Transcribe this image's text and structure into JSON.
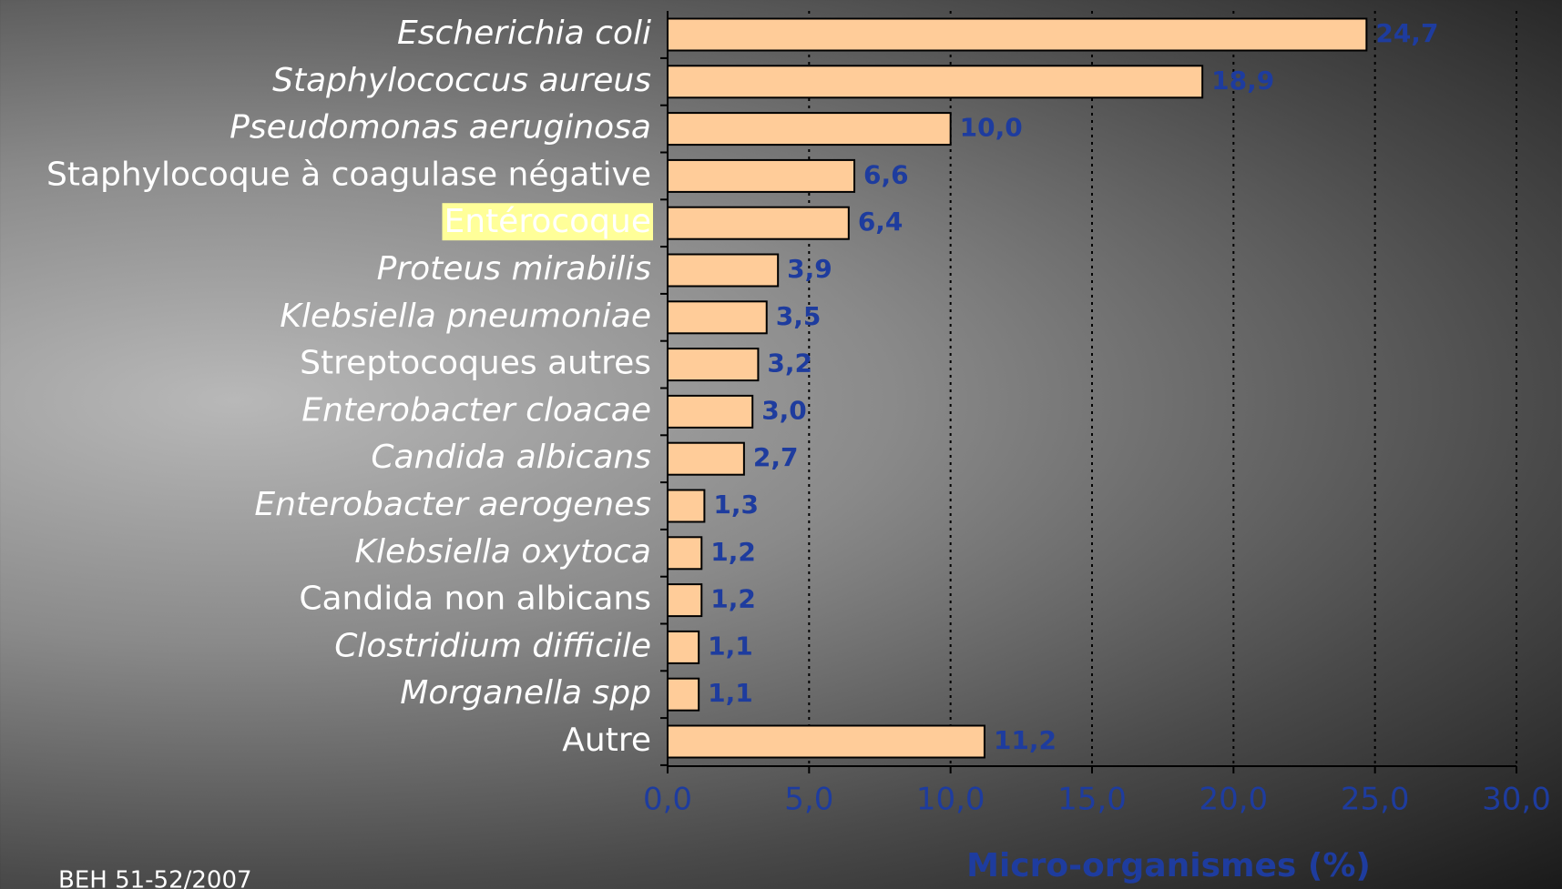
{
  "chart_data": {
    "type": "bar",
    "orientation": "horizontal",
    "categories": [
      "Escherichia coli",
      "Staphylococcus aureus",
      "Pseudomonas aeruginosa",
      "Staphylocoque à coagulase négative",
      "Entérocoque",
      "Proteus mirabilis",
      "Klebsiella pneumoniae",
      "Streptocoques autres",
      "Enterobacter cloacae",
      "Candida albicans",
      "Enterobacter aerogenes",
      "Klebsiella oxytoca",
      "Candida non albicans",
      "Clostridium difficile",
      "Morganella spp",
      "Autre"
    ],
    "italic": [
      true,
      true,
      true,
      false,
      false,
      true,
      true,
      false,
      true,
      true,
      true,
      true,
      false,
      true,
      true,
      false
    ],
    "highlight": [
      false,
      false,
      false,
      false,
      true,
      false,
      false,
      false,
      false,
      false,
      false,
      false,
      false,
      false,
      false,
      false
    ],
    "highlight_color": "#ffff99",
    "values": [
      24.7,
      18.9,
      10.0,
      6.6,
      6.4,
      3.9,
      3.5,
      3.2,
      3.0,
      2.7,
      1.3,
      1.2,
      1.2,
      1.1,
      1.1,
      11.2
    ],
    "value_labels": [
      "24,7",
      "18,9",
      "10,0",
      "6,6",
      "6,4",
      "3,9",
      "3,5",
      "3,2",
      "3,0",
      "2,7",
      "1,3",
      "1,2",
      "1,2",
      "1,1",
      "1,1",
      "11,2"
    ],
    "color": "#ffcc99",
    "xlim": [
      0,
      30
    ],
    "xticks": [
      {
        "value": 0,
        "label": "0,0"
      },
      {
        "value": 5,
        "label": "5,0"
      },
      {
        "value": 10,
        "label": "10,0"
      },
      {
        "value": 15,
        "label": "15,0"
      },
      {
        "value": 20,
        "label": "20,0"
      },
      {
        "value": 25,
        "label": "25,0"
      },
      {
        "value": 30,
        "label": "30,0"
      }
    ],
    "grid": true,
    "x_label": "Micro-organismes (%)",
    "source": "BEH 51-52/2007"
  }
}
